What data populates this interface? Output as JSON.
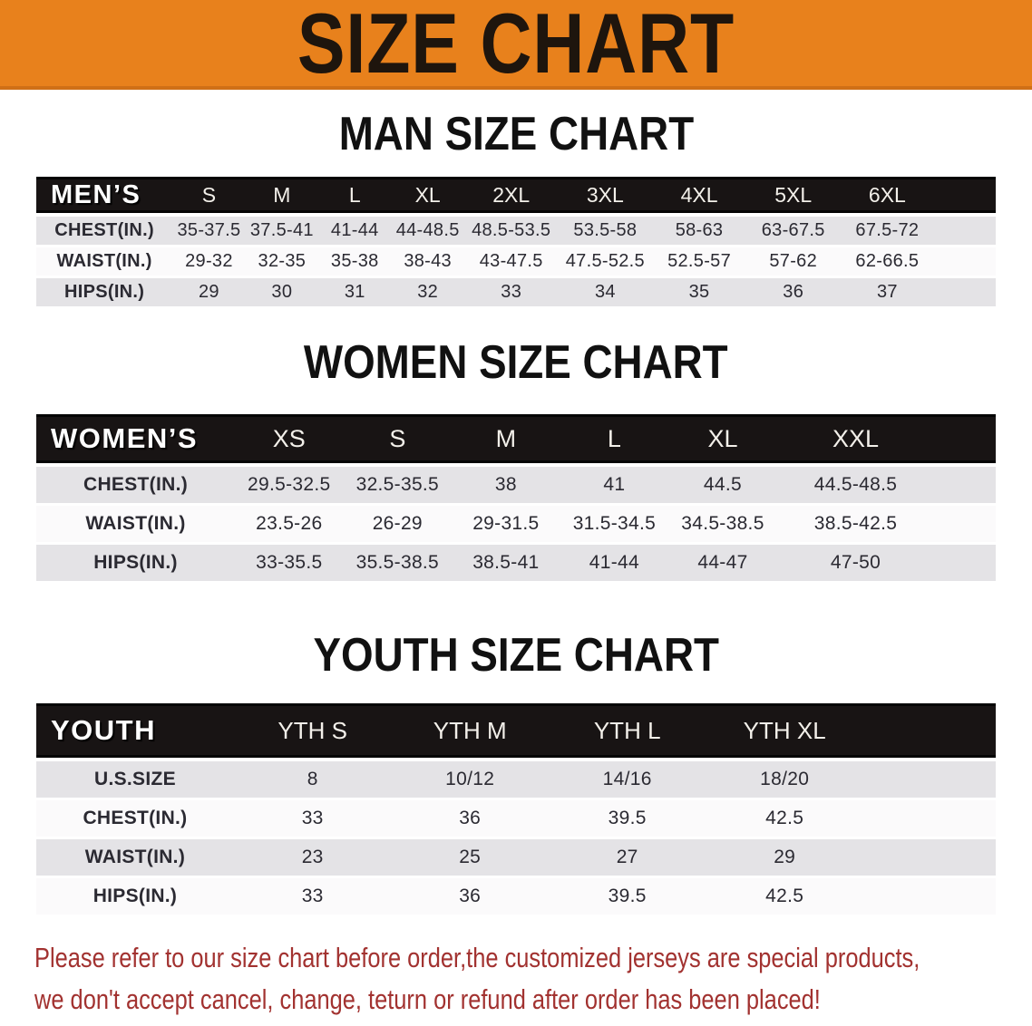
{
  "banner": {
    "title": "SIZE CHART"
  },
  "colors": {
    "banner_bg": "#e8811c",
    "bar_bg": "#181414",
    "row_gray": "#e4e3e6",
    "table_text": "#2b2a32",
    "footer_red": "#a23230"
  },
  "chart_data": [
    {
      "type": "table",
      "title": "MAN SIZE CHART",
      "header_label": "MEN’S",
      "sizes": [
        "S",
        "M",
        "L",
        "XL",
        "2XL",
        "3XL",
        "4XL",
        "5XL",
        "6XL"
      ],
      "rows": [
        {
          "label": "CHEST(IN.)",
          "values": [
            "35-37.5",
            "37.5-41",
            "41-44",
            "44-48.5",
            "48.5-53.5",
            "53.5-58",
            "58-63",
            "63-67.5",
            "67.5-72"
          ]
        },
        {
          "label": "WAIST(IN.)",
          "values": [
            "29-32",
            "32-35",
            "35-38",
            "38-43",
            "43-47.5",
            "47.5-52.5",
            "52.5-57",
            "57-62",
            "62-66.5"
          ]
        },
        {
          "label": "HIPS(IN.)",
          "values": [
            "29",
            "30",
            "31",
            "32",
            "33",
            "34",
            "35",
            "36",
            "37"
          ]
        }
      ]
    },
    {
      "type": "table",
      "title": "WOMEN SIZE CHART",
      "header_label": "WOMEN’S",
      "sizes": [
        "XS",
        "S",
        "M",
        "L",
        "XL",
        "XXL"
      ],
      "rows": [
        {
          "label": "CHEST(IN.)",
          "values": [
            "29.5-32.5",
            "32.5-35.5",
            "38",
            "41",
            "44.5",
            "44.5-48.5"
          ]
        },
        {
          "label": "WAIST(IN.)",
          "values": [
            "23.5-26",
            "26-29",
            "29-31.5",
            "31.5-34.5",
            "34.5-38.5",
            "38.5-42.5"
          ]
        },
        {
          "label": "HIPS(IN.)",
          "values": [
            "33-35.5",
            "35.5-38.5",
            "38.5-41",
            "41-44",
            "44-47",
            "47-50"
          ]
        }
      ]
    },
    {
      "type": "table",
      "title": "YOUTH SIZE CHART",
      "header_label": "YOUTH",
      "sizes": [
        "YTH S",
        "YTH M",
        "YTH L",
        "YTH XL"
      ],
      "rows": [
        {
          "label": "U.S.SIZE",
          "values": [
            "8",
            "10/12",
            "14/16",
            "18/20"
          ]
        },
        {
          "label": "CHEST(IN.)",
          "values": [
            "33",
            "36",
            "39.5",
            "42.5"
          ]
        },
        {
          "label": "WAIST(IN.)",
          "values": [
            "23",
            "25",
            "27",
            "29"
          ]
        },
        {
          "label": "HIPS(IN.)",
          "values": [
            "33",
            "36",
            "39.5",
            "42.5"
          ]
        }
      ]
    }
  ],
  "footer": {
    "line1": "Please refer to our size chart before order,the customized jerseys are special products,",
    "line2": "we don't accept cancel, change, teturn or refund after order has been placed!"
  }
}
